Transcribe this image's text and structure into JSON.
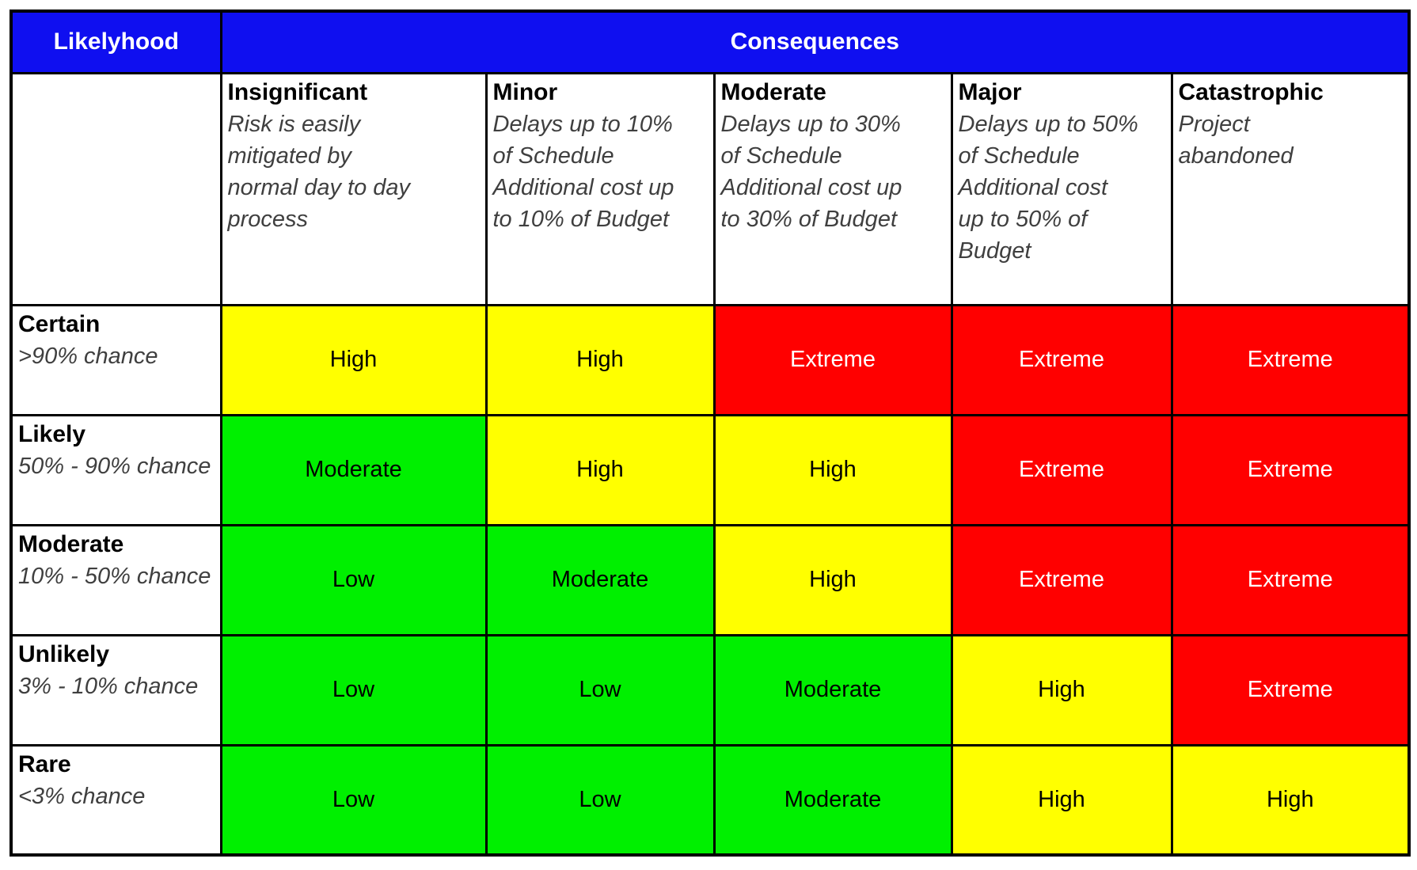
{
  "matrix": {
    "likelihood_header": "Likelyhood",
    "consequences_header": "Consequences",
    "columns": [
      {
        "name": "Insignificant",
        "description": "Risk is easily\nmitigated by\nnormal day to day\nprocess"
      },
      {
        "name": "Minor",
        "description": "Delays up to 10%\nof Schedule\nAdditional cost up\nto 10% of Budget"
      },
      {
        "name": "Moderate",
        "description": "Delays up to 30%\nof Schedule\nAdditional cost up\nto 30% of Budget"
      },
      {
        "name": "Major",
        "description": "Delays up to 50%\nof Schedule\nAdditional cost\nup to 50% of\nBudget"
      },
      {
        "name": "Catastrophic",
        "description": "Project\nabandoned"
      }
    ],
    "rows": [
      {
        "name": "Certain",
        "description": ">90% chance",
        "cells": [
          "High",
          "High",
          "Extreme",
          "Extreme",
          "Extreme"
        ]
      },
      {
        "name": "Likely",
        "description": "50% - 90% chance",
        "cells": [
          "Moderate",
          "High",
          "High",
          "Extreme",
          "Extreme"
        ]
      },
      {
        "name": "Moderate",
        "description": "10% - 50% chance",
        "cells": [
          "Low",
          "Moderate",
          "High",
          "Extreme",
          "Extreme"
        ]
      },
      {
        "name": "Unlikely",
        "description": "3% - 10% chance",
        "cells": [
          "Low",
          "Low",
          "Moderate",
          "High",
          "Extreme"
        ]
      },
      {
        "name": "Rare",
        "description": "<3% chance",
        "cells": [
          "Low",
          "Low",
          "Moderate",
          "High",
          "High"
        ]
      }
    ],
    "severity_colors": {
      "Low": "#00f000",
      "Moderate": "#00f000",
      "High": "#ffff00",
      "Extreme": "#ff0000"
    },
    "severity_text_colors": {
      "Low": "#000000",
      "Moderate": "#000000",
      "High": "#000000",
      "Extreme": "#ffffff"
    },
    "colors": {
      "header_bg": "#0f0ff0",
      "header_text": "#ffffff",
      "grid_line": "#000000",
      "description_text": "#3f3f3f"
    }
  },
  "chart_data": {
    "type": "heatmap",
    "title": "",
    "xlabel": "Consequences",
    "ylabel": "Likelyhood",
    "x_categories": [
      "Insignificant",
      "Minor",
      "Moderate",
      "Major",
      "Catastrophic"
    ],
    "y_categories": [
      "Certain",
      "Likely",
      "Moderate",
      "Unlikely",
      "Rare"
    ],
    "values": [
      [
        "High",
        "High",
        "Extreme",
        "Extreme",
        "Extreme"
      ],
      [
        "Moderate",
        "High",
        "High",
        "Extreme",
        "Extreme"
      ],
      [
        "Low",
        "Moderate",
        "High",
        "Extreme",
        "Extreme"
      ],
      [
        "Low",
        "Low",
        "Moderate",
        "High",
        "Extreme"
      ],
      [
        "Low",
        "Low",
        "Moderate",
        "High",
        "High"
      ]
    ],
    "value_color_map": {
      "Low": "#00f000",
      "Moderate": "#00f000",
      "High": "#ffff00",
      "Extreme": "#ff0000"
    },
    "legend_position": "none",
    "grid": true
  }
}
